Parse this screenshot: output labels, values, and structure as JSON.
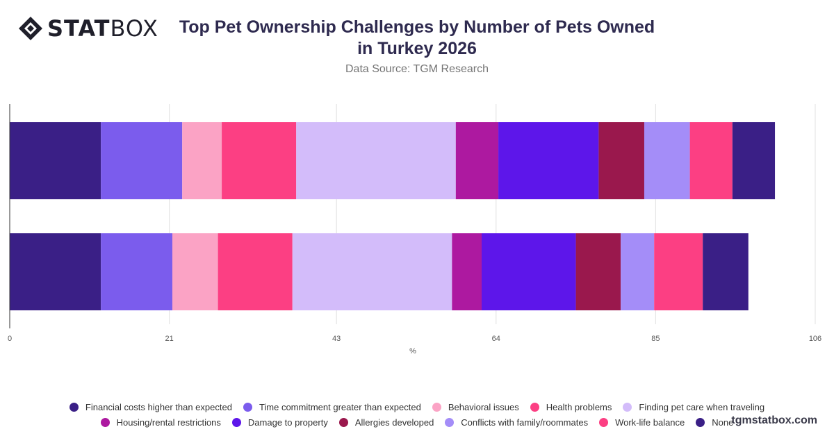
{
  "brand": {
    "logo_bold": "STAT",
    "logo_light": "BOX",
    "watermark": "tgmstatbox.com"
  },
  "header": {
    "title": "Top Pet Ownership Challenges by Number of Pets Owned in Turkey 2026",
    "subtitle": "Data Source: TGM Research"
  },
  "chart_data": {
    "type": "bar",
    "orientation": "horizontal",
    "stacked": true,
    "title": "Top Pet Ownership Challenges by Number of Pets Owned in Turkey 2026",
    "subtitle": "Data Source: TGM Research",
    "xlabel": "%",
    "ylabel": "",
    "xlim": [
      0,
      106
    ],
    "xticks": [
      0,
      21,
      43,
      64,
      85,
      106
    ],
    "grid": true,
    "legend_position": "bottom",
    "categories": [
      "",
      ""
    ],
    "series": [
      {
        "name": "Financial costs higher than expected",
        "color": "#3a1f86",
        "values": [
          12,
          12
        ]
      },
      {
        "name": "Time commitment greater than expected",
        "color": "#7b5ced",
        "values": [
          10.7,
          9.4
        ]
      },
      {
        "name": "Behavioral issues",
        "color": "#fba3c5",
        "values": [
          5.2,
          6
        ]
      },
      {
        "name": "Health problems",
        "color": "#fc3f83",
        "values": [
          9.8,
          9.8
        ]
      },
      {
        "name": "Finding pet care when traveling",
        "color": "#d3bcfa",
        "values": [
          21,
          21
        ]
      },
      {
        "name": "Housing/rental restrictions",
        "color": "#ad19a0",
        "values": [
          5.6,
          3.9
        ]
      },
      {
        "name": "Damage to property",
        "color": "#5d16ea",
        "values": [
          13.2,
          12.4
        ]
      },
      {
        "name": "Allergies developed",
        "color": "#9a184d",
        "values": [
          6,
          5.9
        ]
      },
      {
        "name": "Conflicts with family/roommates",
        "color": "#a48df8",
        "values": [
          6,
          4.4
        ]
      },
      {
        "name": "Work-life balance",
        "color": "#fc3f83",
        "values": [
          5.6,
          6.4
        ]
      },
      {
        "name": "None",
        "color": "#3a1f86",
        "values": [
          5.6,
          6
        ]
      }
    ]
  }
}
